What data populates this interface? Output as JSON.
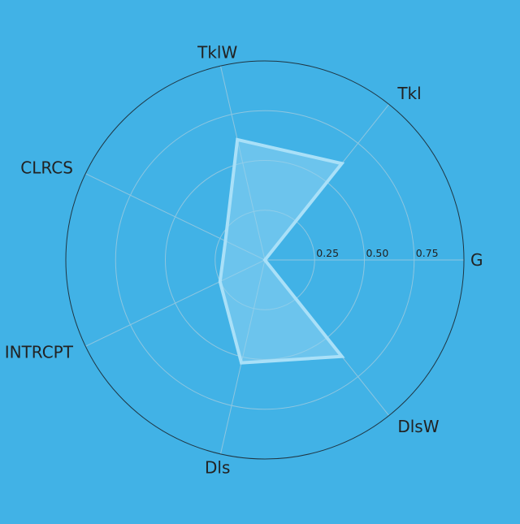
{
  "chart_data": {
    "type": "radar",
    "title": "",
    "categories": [
      "G",
      "Tkl",
      "TklW",
      "CLRCS",
      "INTRCPT",
      "Dls",
      "DlsW"
    ],
    "series": [
      {
        "values": [
          0.0,
          0.62,
          0.62,
          0.22,
          0.25,
          0.53,
          0.62
        ]
      }
    ],
    "r_ticks": [
      0.25,
      0.5,
      0.75
    ],
    "r_tick_labels": [
      "0.25",
      "0.50",
      "0.75"
    ],
    "rlim": [
      0,
      1
    ],
    "grid": true,
    "colors": {
      "background": "#41b2e6",
      "fill": "#8fd4f3",
      "line": "#a9e0f8",
      "grid": "#8ec6e0",
      "outer_circle": "#1f3542",
      "text": "#222222"
    }
  }
}
